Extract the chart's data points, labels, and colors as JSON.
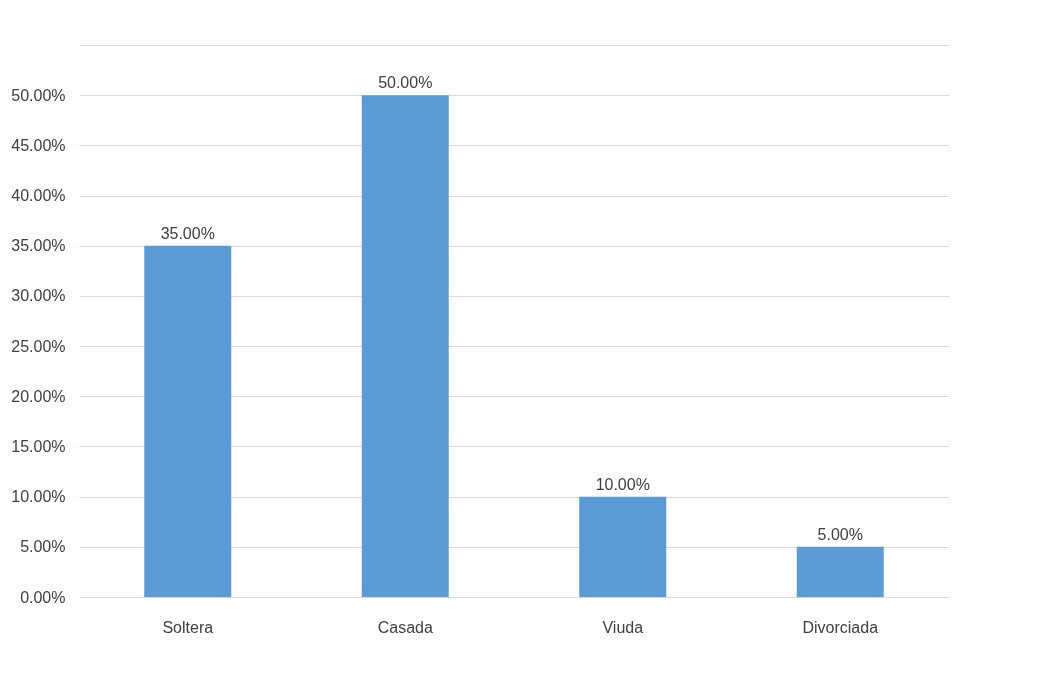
{
  "chart_data": {
    "type": "bar",
    "categories": [
      "Soltera",
      "Casada",
      "Viuda",
      "Divorciada"
    ],
    "values": [
      35,
      50,
      10,
      5
    ],
    "color": "#5b9bd5",
    "value_labels": [
      "35.00%",
      "50.00%",
      "10.00%",
      "5.00%"
    ],
    "ylim": [
      0,
      55
    ],
    "yticks": [
      {
        "value": 0,
        "label": "0.00%"
      },
      {
        "value": 5,
        "label": "5.00%"
      },
      {
        "value": 10,
        "label": "10.00%"
      },
      {
        "value": 15,
        "label": "15.00%"
      },
      {
        "value": 20,
        "label": "20.00%"
      },
      {
        "value": 25,
        "label": "25.00%"
      },
      {
        "value": 30,
        "label": "30.00%"
      },
      {
        "value": 35,
        "label": "35.00%"
      },
      {
        "value": 40,
        "label": "40.00%"
      },
      {
        "value": 45,
        "label": "45.00%"
      },
      {
        "value": 50,
        "label": "50.00%"
      },
      {
        "value": 55,
        "label": null
      }
    ],
    "grid": "y"
  }
}
